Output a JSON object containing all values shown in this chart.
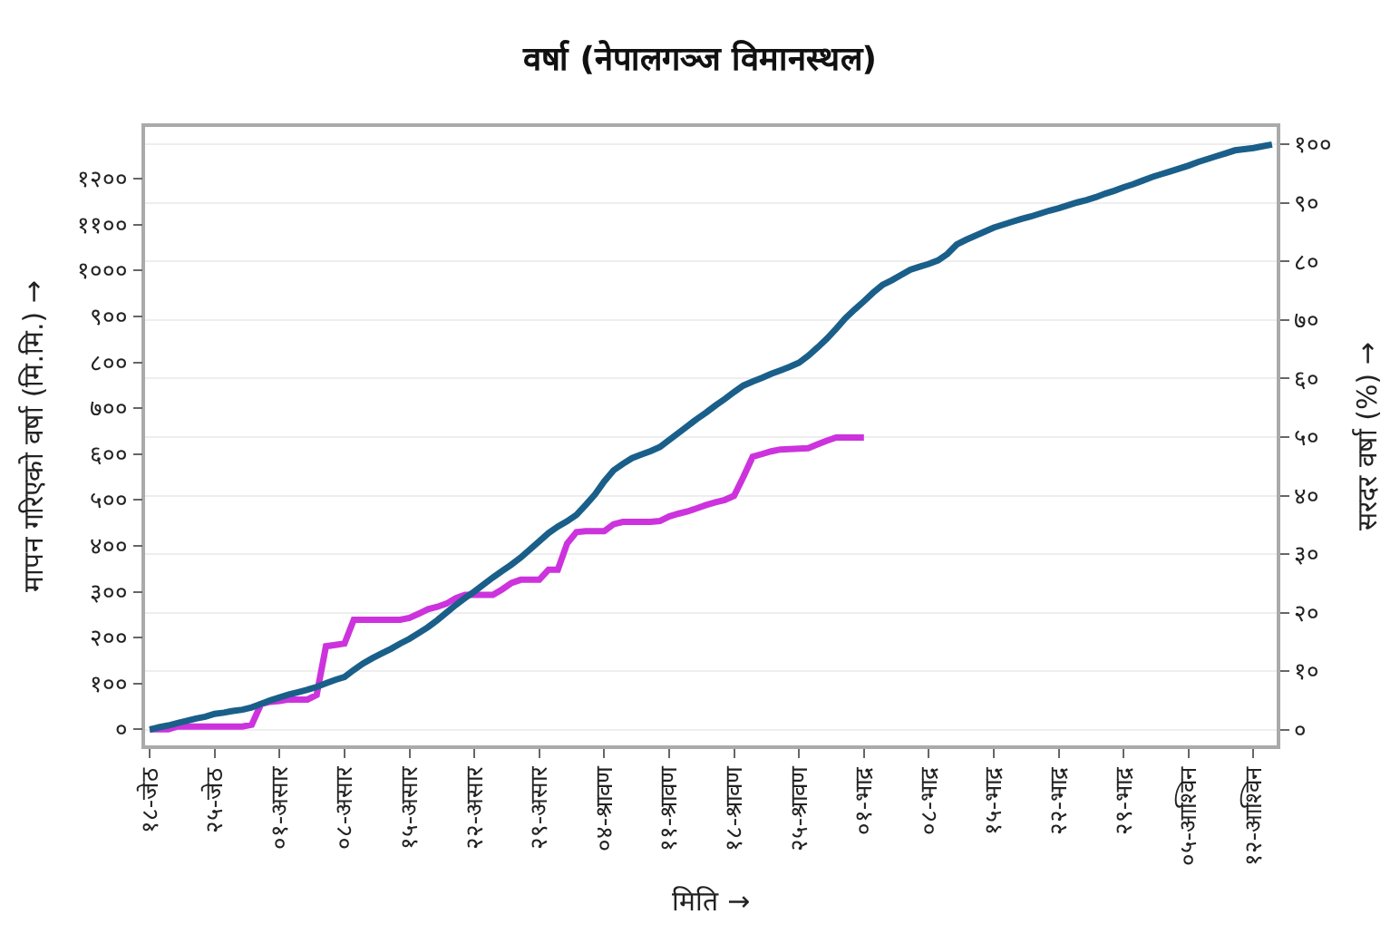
{
  "chart_data": {
    "type": "line",
    "title": "वर्षा (नेपालगञ्ज विमानस्थल)",
    "xlabel": "मिति →",
    "ylabel": "मापन गरिएको वर्षा (मि.मि.) →",
    "y2label": "सरदर वर्षा (%) →",
    "categories": [
      "१८-जेठ",
      null,
      null,
      null,
      null,
      null,
      null,
      "२५-जेठ",
      null,
      null,
      null,
      null,
      null,
      null,
      "०१-असार",
      null,
      null,
      null,
      null,
      null,
      null,
      "०८-असार",
      null,
      null,
      null,
      null,
      null,
      null,
      "१५-असार",
      null,
      null,
      null,
      null,
      null,
      null,
      "२२-असार",
      null,
      null,
      null,
      null,
      null,
      null,
      "२९-असार",
      null,
      null,
      null,
      null,
      null,
      null,
      "०४-श्रावण",
      null,
      null,
      null,
      null,
      null,
      null,
      "११-श्रावण",
      null,
      null,
      null,
      null,
      null,
      null,
      "१८-श्रावण",
      null,
      null,
      null,
      null,
      null,
      null,
      "२५-श्रावण",
      null,
      null,
      null,
      null,
      null,
      null,
      "०१-भाद्र",
      null,
      null,
      null,
      null,
      null,
      null,
      "०८-भाद्र",
      null,
      null,
      null,
      null,
      null,
      null,
      "१५-भाद्र",
      null,
      null,
      null,
      null,
      null,
      null,
      "२२-भाद्र",
      null,
      null,
      null,
      null,
      null,
      null,
      "२९-भाद्र",
      null,
      null,
      null,
      null,
      null,
      null,
      "०५-आश्विन",
      null,
      null,
      null,
      null,
      null,
      null,
      "१२-आश्विन",
      null,
      null
    ],
    "ylim": [
      -35,
      1313
    ],
    "yticks": [
      {
        "value": 0,
        "label": "०"
      },
      {
        "value": 100,
        "label": "१००"
      },
      {
        "value": 200,
        "label": "२००"
      },
      {
        "value": 300,
        "label": "३००"
      },
      {
        "value": 400,
        "label": "४००"
      },
      {
        "value": 500,
        "label": "५००"
      },
      {
        "value": 600,
        "label": "६००"
      },
      {
        "value": 700,
        "label": "७००"
      },
      {
        "value": 800,
        "label": "८००"
      },
      {
        "value": 900,
        "label": "९००"
      },
      {
        "value": 1000,
        "label": "१०००"
      },
      {
        "value": 1100,
        "label": "११००"
      },
      {
        "value": 1200,
        "label": "१२००"
      }
    ],
    "y2lim": [
      -2.7,
      103
    ],
    "y2ticks": [
      {
        "value": 0,
        "label": "०"
      },
      {
        "value": 10,
        "label": "१०"
      },
      {
        "value": 20,
        "label": "२०"
      },
      {
        "value": 30,
        "label": "३०"
      },
      {
        "value": 40,
        "label": "४०"
      },
      {
        "value": 50,
        "label": "५०"
      },
      {
        "value": 60,
        "label": "६०"
      },
      {
        "value": 70,
        "label": "७०"
      },
      {
        "value": 80,
        "label": "८०"
      },
      {
        "value": 90,
        "label": "९०"
      },
      {
        "value": 100,
        "label": "१००"
      }
    ],
    "grid": "y2",
    "line_style": "solid",
    "series": [
      {
        "color": "#1a5f8a",
        "axis": "y2",
        "values": [
          0,
          0.4,
          0.7,
          1.1,
          1.5,
          1.9,
          2.2,
          2.7,
          2.9,
          3.2,
          3.4,
          3.8,
          4.4,
          5.0,
          5.5,
          6.0,
          6.4,
          6.8,
          7.3,
          7.9,
          8.5,
          9.0,
          10.2,
          11.3,
          12.2,
          13.0,
          13.8,
          14.7,
          15.5,
          16.5,
          17.5,
          18.7,
          20.0,
          21.3,
          22.5,
          23.6,
          24.8,
          26.0,
          27.1,
          28.2,
          29.4,
          30.8,
          32.2,
          33.6,
          34.7,
          35.6,
          36.7,
          38.4,
          40.2,
          42.4,
          44.3,
          45.4,
          46.4,
          47.0,
          47.6,
          48.3,
          49.5,
          50.7,
          51.9,
          53.1,
          54.2,
          55.4,
          56.5,
          57.7,
          58.8,
          59.5,
          60.1,
          60.8,
          61.4,
          62.0,
          62.7,
          63.9,
          65.3,
          66.8,
          68.5,
          70.3,
          71.8,
          73.2,
          74.7,
          76.0,
          76.8,
          77.7,
          78.6,
          79.1,
          79.6,
          80.2,
          81.3,
          82.9,
          83.7,
          84.4,
          85.1,
          85.8,
          86.3,
          86.8,
          87.3,
          87.7,
          88.2,
          88.7,
          89.1,
          89.6,
          90.1,
          90.5,
          91.0,
          91.6,
          92.1,
          92.7,
          93.2,
          93.8,
          94.4,
          94.9,
          95.4,
          95.9,
          96.4,
          97.0,
          97.5,
          98.0,
          98.5,
          99.0,
          99.2,
          99.4,
          99.7,
          100
        ]
      },
      {
        "color": "#cc33dd",
        "axis": "y",
        "values": [
          0,
          0,
          0,
          6,
          6,
          6,
          6,
          6,
          6,
          6,
          6,
          10,
          55,
          60,
          62,
          65,
          65,
          65,
          75,
          181,
          184,
          187,
          239,
          239,
          239,
          239,
          239,
          239,
          243,
          252,
          262,
          267,
          274,
          286,
          293,
          293,
          293,
          293,
          305,
          319,
          326,
          326,
          326,
          348,
          348,
          405,
          430,
          432,
          432,
          432,
          447,
          452,
          452,
          452,
          452,
          454,
          464,
          470,
          475,
          482,
          489,
          495,
          500,
          509,
          550,
          594,
          600,
          606,
          610,
          611,
          612,
          613,
          621,
          629,
          636,
          636,
          636,
          636,
          null,
          null,
          null,
          null,
          null,
          null,
          null,
          null,
          null,
          null,
          null,
          null,
          null,
          null,
          null,
          null,
          null,
          null,
          null,
          null,
          null,
          null,
          null,
          null,
          null,
          null,
          null,
          null,
          null,
          null,
          null,
          null,
          null,
          null,
          null,
          null,
          null,
          null,
          null,
          null,
          null,
          null,
          null,
          null
        ]
      }
    ]
  }
}
